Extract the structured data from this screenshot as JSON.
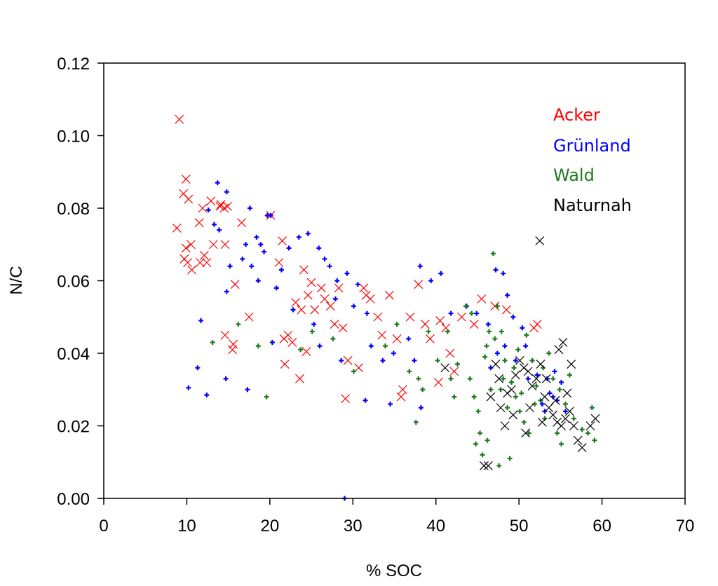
{
  "chart_data": {
    "type": "scatter",
    "title": "",
    "xlabel": "% SOC",
    "ylabel": "N/C",
    "xlim": [
      0,
      70
    ],
    "ylim": [
      0,
      0.12
    ],
    "xticks": [
      "0",
      "10",
      "20",
      "30",
      "40",
      "50",
      "60",
      "70"
    ],
    "yticks": [
      "0.00",
      "0.02",
      "0.04",
      "0.06",
      "0.08",
      "0.10",
      "0.12"
    ],
    "grid": false,
    "legend_position": "top-right",
    "series": [
      {
        "name": "Acker",
        "color": "#ff0000",
        "marker": "x",
        "points": [
          [
            9.1,
            0.1045
          ],
          [
            8.8,
            0.0745
          ],
          [
            9.9,
            0.088
          ],
          [
            9.6,
            0.084
          ],
          [
            10.2,
            0.0825
          ],
          [
            9.9,
            0.069
          ],
          [
            10.5,
            0.07
          ],
          [
            9.7,
            0.066
          ],
          [
            10.1,
            0.065
          ],
          [
            10.6,
            0.063
          ],
          [
            11.5,
            0.076
          ],
          [
            11.9,
            0.08
          ],
          [
            12.1,
            0.067
          ],
          [
            11.6,
            0.065
          ],
          [
            12.4,
            0.065
          ],
          [
            12.9,
            0.082
          ],
          [
            14.1,
            0.081
          ],
          [
            14.5,
            0.08
          ],
          [
            14.0,
            0.0805
          ],
          [
            14.9,
            0.0805
          ],
          [
            14.6,
            0.07
          ],
          [
            13.2,
            0.07
          ],
          [
            16.6,
            0.076
          ],
          [
            15.8,
            0.059
          ],
          [
            14.6,
            0.045
          ],
          [
            15.5,
            0.041
          ],
          [
            15.6,
            0.0425
          ],
          [
            17.5,
            0.05
          ],
          [
            20.1,
            0.078
          ],
          [
            21.5,
            0.071
          ],
          [
            21.1,
            0.065
          ],
          [
            21.7,
            0.044
          ],
          [
            22.2,
            0.045
          ],
          [
            21.8,
            0.037
          ],
          [
            22.7,
            0.043
          ],
          [
            23.1,
            0.054
          ],
          [
            23.6,
            0.033
          ],
          [
            24.4,
            0.0405
          ],
          [
            23.8,
            0.052
          ],
          [
            24.6,
            0.056
          ],
          [
            24.1,
            0.063
          ],
          [
            25.0,
            0.0595
          ],
          [
            26.2,
            0.058
          ],
          [
            26.6,
            0.055
          ],
          [
            25.4,
            0.052
          ],
          [
            27.3,
            0.053
          ],
          [
            27.8,
            0.048
          ],
          [
            28.3,
            0.058
          ],
          [
            28.8,
            0.047
          ],
          [
            29.4,
            0.038
          ],
          [
            29.1,
            0.0275
          ],
          [
            30.7,
            0.036
          ],
          [
            31.3,
            0.058
          ],
          [
            31.6,
            0.056
          ],
          [
            32.1,
            0.055
          ],
          [
            33.0,
            0.05
          ],
          [
            33.5,
            0.045
          ],
          [
            34.4,
            0.056
          ],
          [
            35.3,
            0.044
          ],
          [
            36.0,
            0.03
          ],
          [
            35.8,
            0.028
          ],
          [
            36.9,
            0.05
          ],
          [
            37.9,
            0.059
          ],
          [
            38.7,
            0.048
          ],
          [
            39.3,
            0.044
          ],
          [
            40.5,
            0.049
          ],
          [
            41.2,
            0.047
          ],
          [
            43.1,
            0.05
          ],
          [
            44.6,
            0.048
          ],
          [
            45.5,
            0.055
          ],
          [
            47.1,
            0.053
          ],
          [
            48.5,
            0.052
          ],
          [
            51.8,
            0.047
          ],
          [
            52.2,
            0.048
          ],
          [
            40.3,
            0.032
          ],
          [
            41.7,
            0.04
          ],
          [
            42.2,
            0.035
          ]
        ]
      },
      {
        "name": "Grünland",
        "color": "#0000ff",
        "marker": "plus",
        "points": [
          [
            13.7,
            0.087
          ],
          [
            14.8,
            0.0845
          ],
          [
            12.6,
            0.0795
          ],
          [
            13.3,
            0.0755
          ],
          [
            13.9,
            0.074
          ],
          [
            17.6,
            0.08
          ],
          [
            17.1,
            0.07
          ],
          [
            18.4,
            0.072
          ],
          [
            18.9,
            0.07
          ],
          [
            16.7,
            0.066
          ],
          [
            15.2,
            0.064
          ],
          [
            14.8,
            0.057
          ],
          [
            19.3,
            0.068
          ],
          [
            19.7,
            0.078
          ],
          [
            20.1,
            0.078
          ],
          [
            18.6,
            0.06
          ],
          [
            17.8,
            0.064
          ],
          [
            22.3,
            0.069
          ],
          [
            23.5,
            0.072
          ],
          [
            24.6,
            0.073
          ],
          [
            25.9,
            0.069
          ],
          [
            26.6,
            0.066
          ],
          [
            27.2,
            0.064
          ],
          [
            28.1,
            0.06
          ],
          [
            27.9,
            0.055
          ],
          [
            29.3,
            0.062
          ],
          [
            30.6,
            0.059
          ],
          [
            30.1,
            0.053
          ],
          [
            31.7,
            0.051
          ],
          [
            22.8,
            0.052
          ],
          [
            21.4,
            0.063
          ],
          [
            20.8,
            0.058
          ],
          [
            11.7,
            0.049
          ],
          [
            11.3,
            0.036
          ],
          [
            12.4,
            0.0285
          ],
          [
            10.2,
            0.0305
          ],
          [
            14.7,
            0.033
          ],
          [
            17.3,
            0.03
          ],
          [
            20.3,
            0.043
          ],
          [
            25.3,
            0.048
          ],
          [
            26.0,
            0.042
          ],
          [
            28.6,
            0.038
          ],
          [
            32.2,
            0.042
          ],
          [
            33.6,
            0.038
          ],
          [
            34.9,
            0.04
          ],
          [
            36.7,
            0.044
          ],
          [
            37.4,
            0.038
          ],
          [
            38.2,
            0.025
          ],
          [
            39.4,
            0.06
          ],
          [
            40.6,
            0.062
          ],
          [
            38.1,
            0.064
          ],
          [
            41.8,
            0.051
          ],
          [
            43.7,
            0.053
          ],
          [
            44.9,
            0.051
          ],
          [
            46.3,
            0.048
          ],
          [
            47.2,
            0.063
          ],
          [
            48.1,
            0.062
          ],
          [
            48.6,
            0.056
          ],
          [
            49.3,
            0.05
          ],
          [
            50.4,
            0.047
          ],
          [
            50.8,
            0.042
          ],
          [
            51.6,
            0.038
          ],
          [
            52.2,
            0.034
          ],
          [
            53.4,
            0.033
          ],
          [
            53.7,
            0.029
          ],
          [
            54.1,
            0.028
          ],
          [
            54.6,
            0.027
          ],
          [
            55.1,
            0.032
          ],
          [
            55.6,
            0.024
          ],
          [
            53.1,
            0.024
          ],
          [
            52.8,
            0.026
          ],
          [
            49.6,
            0.038
          ],
          [
            48.3,
            0.042
          ],
          [
            47.4,
            0.04
          ],
          [
            46.6,
            0.036
          ],
          [
            51.1,
            0.033
          ],
          [
            54.3,
            0.035
          ],
          [
            29.0,
            0.0
          ],
          [
            31.5,
            0.027
          ],
          [
            34.5,
            0.026
          ]
        ]
      },
      {
        "name": "Wald",
        "color": "#1e7a1e",
        "marker": "plus",
        "points": [
          [
            13.1,
            0.043
          ],
          [
            16.2,
            0.048
          ],
          [
            18.6,
            0.042
          ],
          [
            19.6,
            0.028
          ],
          [
            23.7,
            0.041
          ],
          [
            25.1,
            0.046
          ],
          [
            27.6,
            0.044
          ],
          [
            30.1,
            0.035
          ],
          [
            33.9,
            0.042
          ],
          [
            35.3,
            0.048
          ],
          [
            36.8,
            0.035
          ],
          [
            37.9,
            0.033
          ],
          [
            38.4,
            0.03
          ],
          [
            37.6,
            0.021
          ],
          [
            39.1,
            0.046
          ],
          [
            40.2,
            0.038
          ],
          [
            41.4,
            0.046
          ],
          [
            42.6,
            0.037
          ],
          [
            44.1,
            0.033
          ],
          [
            44.6,
            0.028
          ],
          [
            45.1,
            0.024
          ],
          [
            45.3,
            0.018
          ],
          [
            44.8,
            0.015
          ],
          [
            45.6,
            0.012
          ],
          [
            46.2,
            0.016
          ],
          [
            46.6,
            0.03
          ],
          [
            46.9,
            0.0675
          ],
          [
            47.4,
            0.053
          ],
          [
            47.9,
            0.046
          ],
          [
            48.3,
            0.038
          ],
          [
            48.6,
            0.025
          ],
          [
            49.1,
            0.032
          ],
          [
            48.9,
            0.011
          ],
          [
            47.6,
            0.009
          ],
          [
            49.6,
            0.028
          ],
          [
            50.1,
            0.024
          ],
          [
            50.6,
            0.021
          ],
          [
            51.2,
            0.018
          ],
          [
            51.6,
            0.038
          ],
          [
            52.1,
            0.031
          ],
          [
            52.6,
            0.027
          ],
          [
            53.1,
            0.022
          ],
          [
            53.6,
            0.04
          ],
          [
            54.1,
            0.033
          ],
          [
            54.6,
            0.018
          ],
          [
            55.1,
            0.015
          ],
          [
            55.6,
            0.026
          ],
          [
            56.1,
            0.034
          ],
          [
            56.6,
            0.022
          ],
          [
            57.6,
            0.019
          ],
          [
            58.3,
            0.018
          ],
          [
            58.8,
            0.025
          ],
          [
            59.1,
            0.016
          ],
          [
            46.1,
            0.042
          ],
          [
            47.1,
            0.044
          ],
          [
            49.9,
            0.041
          ],
          [
            50.9,
            0.045
          ],
          [
            52.9,
            0.036
          ],
          [
            54.9,
            0.03
          ],
          [
            43.6,
            0.053
          ],
          [
            44.3,
            0.051
          ],
          [
            46.4,
            0.046
          ],
          [
            48.1,
            0.033
          ],
          [
            49.4,
            0.036
          ],
          [
            50.3,
            0.029
          ],
          [
            51.9,
            0.026
          ],
          [
            45.9,
            0.039
          ],
          [
            47.8,
            0.03
          ],
          [
            42.2,
            0.028
          ],
          [
            41.8,
            0.033
          ]
        ]
      },
      {
        "name": "Naturnah",
        "color": "#000000",
        "marker": "x",
        "points": [
          [
            52.5,
            0.071
          ],
          [
            41.1,
            0.036
          ],
          [
            45.8,
            0.009
          ],
          [
            46.3,
            0.009
          ],
          [
            47.2,
            0.037
          ],
          [
            47.6,
            0.033
          ],
          [
            48.6,
            0.029
          ],
          [
            49.1,
            0.03
          ],
          [
            49.6,
            0.034
          ],
          [
            50.1,
            0.038
          ],
          [
            50.6,
            0.036
          ],
          [
            51.1,
            0.035
          ],
          [
            51.6,
            0.031
          ],
          [
            52.1,
            0.033
          ],
          [
            52.6,
            0.037
          ],
          [
            53.1,
            0.028
          ],
          [
            53.6,
            0.025
          ],
          [
            54.1,
            0.023
          ],
          [
            54.6,
            0.021
          ],
          [
            55.1,
            0.02
          ],
          [
            55.6,
            0.022
          ],
          [
            56.1,
            0.024
          ],
          [
            56.6,
            0.02
          ],
          [
            57.1,
            0.016
          ],
          [
            57.6,
            0.014
          ],
          [
            58.6,
            0.02
          ],
          [
            59.2,
            0.022
          ],
          [
            54.8,
            0.041
          ],
          [
            55.3,
            0.043
          ],
          [
            56.3,
            0.037
          ],
          [
            53.3,
            0.033
          ],
          [
            51.3,
            0.025
          ],
          [
            49.3,
            0.023
          ],
          [
            47.8,
            0.025
          ],
          [
            46.6,
            0.028
          ],
          [
            48.3,
            0.02
          ],
          [
            50.8,
            0.018
          ],
          [
            52.8,
            0.021
          ],
          [
            54.4,
            0.027
          ],
          [
            55.8,
            0.029
          ]
        ]
      }
    ]
  }
}
